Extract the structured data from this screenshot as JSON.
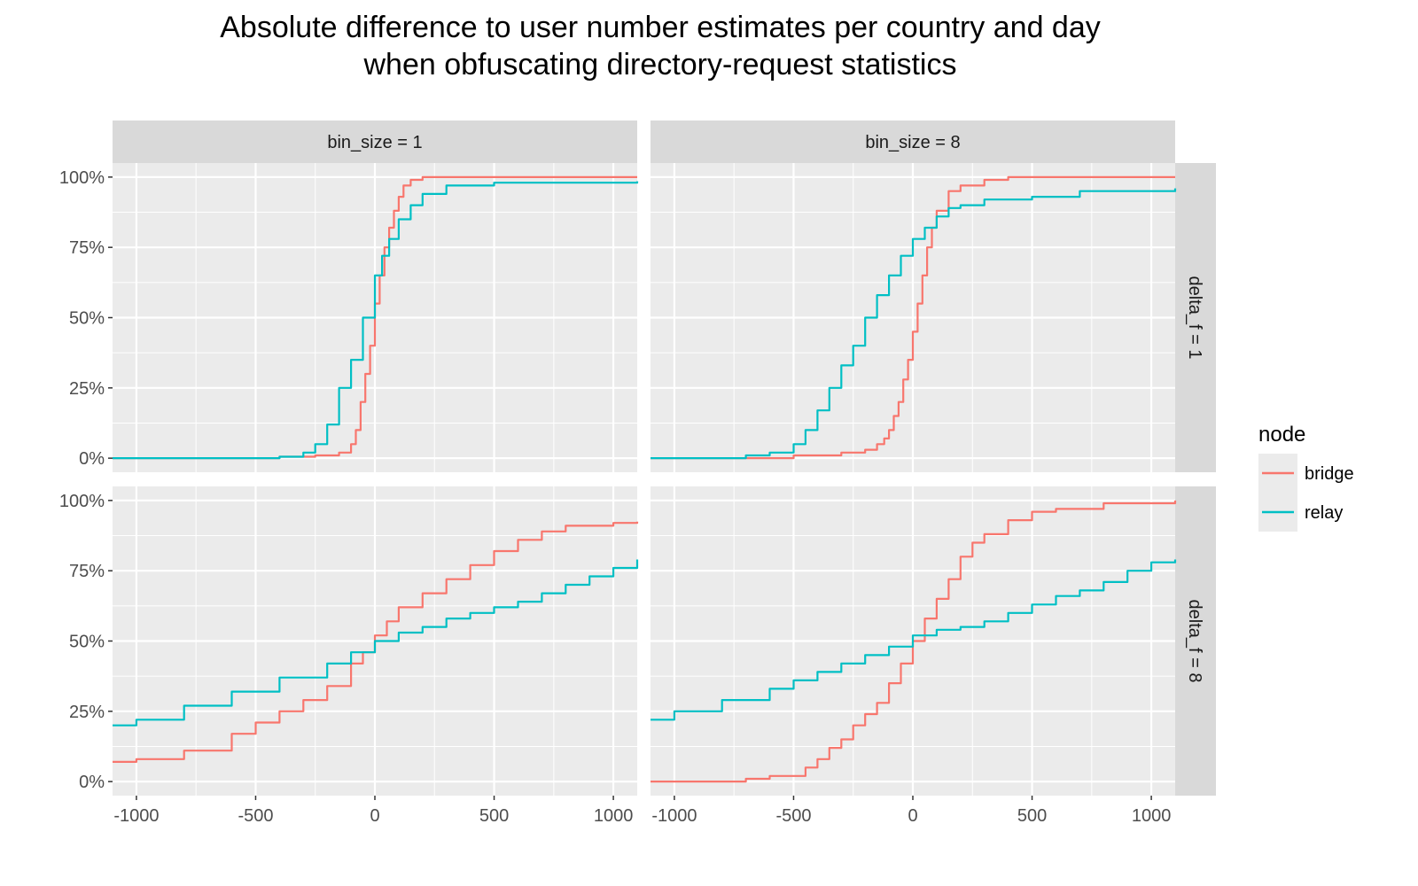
{
  "title_lines": [
    "Absolute difference to user number estimates per country and day",
    "when obfuscating directory-request statistics"
  ],
  "colors": {
    "bridge": "#F8766D",
    "relay": "#00BFC4",
    "panel": "#EBEBEB",
    "strip": "#D9D9D9",
    "grid": "#FFFFFF"
  },
  "chart_data": {
    "type": "line",
    "title": "Absolute difference to user number estimates per country and day when obfuscating directory-request statistics",
    "xlim": [
      -1100,
      1100
    ],
    "ylim": [
      0,
      1
    ],
    "x_ticks": [
      -1000,
      -500,
      0,
      500,
      1000
    ],
    "x_tick_labels": [
      "-1000",
      "-500",
      "0",
      "500",
      "1000"
    ],
    "y_ticks": [
      0,
      0.25,
      0.5,
      0.75,
      1
    ],
    "y_tick_labels": [
      "0%",
      "25%",
      "50%",
      "75%",
      "100%"
    ],
    "grid": true,
    "legend": {
      "title": "node",
      "position": "right",
      "entries": [
        "bridge",
        "relay"
      ]
    },
    "facet_cols": [
      "bin_size = 1",
      "bin_size = 8"
    ],
    "facet_rows": [
      "delta_f = 1",
      "delta_f = 8"
    ],
    "panels": [
      {
        "col": "bin_size = 1",
        "row": "delta_f = 1",
        "series": [
          {
            "name": "bridge",
            "x": [
              -1100,
              -600,
              -400,
              -250,
              -150,
              -100,
              -80,
              -60,
              -40,
              -20,
              0,
              20,
              40,
              60,
              80,
              100,
              120,
              150,
              200,
              300,
              500,
              1100
            ],
            "y": [
              0.0,
              0.0,
              0.005,
              0.01,
              0.02,
              0.05,
              0.1,
              0.2,
              0.3,
              0.4,
              0.55,
              0.65,
              0.75,
              0.82,
              0.88,
              0.93,
              0.97,
              0.99,
              1.0,
              1.0,
              1.0,
              1.0
            ]
          },
          {
            "name": "relay",
            "x": [
              -1100,
              -600,
              -400,
              -300,
              -250,
              -200,
              -150,
              -100,
              -50,
              0,
              30,
              60,
              100,
              150,
              200,
              300,
              500,
              800,
              1100
            ],
            "y": [
              0.0,
              0.0,
              0.005,
              0.02,
              0.05,
              0.12,
              0.25,
              0.35,
              0.5,
              0.65,
              0.72,
              0.78,
              0.85,
              0.9,
              0.94,
              0.97,
              0.98,
              0.98,
              0.985
            ]
          }
        ]
      },
      {
        "col": "bin_size = 8",
        "row": "delta_f = 1",
        "series": [
          {
            "name": "bridge",
            "x": [
              -1100,
              -800,
              -500,
              -300,
              -200,
              -150,
              -120,
              -100,
              -80,
              -60,
              -40,
              -20,
              0,
              20,
              40,
              60,
              80,
              100,
              150,
              200,
              300,
              400,
              600,
              1100
            ],
            "y": [
              0.0,
              0.0,
              0.01,
              0.02,
              0.03,
              0.05,
              0.07,
              0.1,
              0.15,
              0.2,
              0.28,
              0.35,
              0.45,
              0.55,
              0.65,
              0.75,
              0.82,
              0.88,
              0.95,
              0.97,
              0.99,
              1.0,
              1.0,
              1.0
            ]
          },
          {
            "name": "relay",
            "x": [
              -1100,
              -850,
              -700,
              -600,
              -500,
              -450,
              -400,
              -350,
              -300,
              -250,
              -200,
              -150,
              -100,
              -50,
              0,
              50,
              100,
              150,
              200,
              300,
              500,
              700,
              1100
            ],
            "y": [
              0.0,
              0.0,
              0.01,
              0.02,
              0.05,
              0.1,
              0.17,
              0.25,
              0.33,
              0.4,
              0.5,
              0.58,
              0.65,
              0.72,
              0.78,
              0.82,
              0.86,
              0.89,
              0.9,
              0.92,
              0.93,
              0.95,
              0.96
            ]
          }
        ]
      },
      {
        "col": "bin_size = 1",
        "row": "delta_f = 8",
        "series": [
          {
            "name": "bridge",
            "x": [
              -1100,
              -1000,
              -800,
              -600,
              -500,
              -400,
              -300,
              -200,
              -100,
              -50,
              0,
              50,
              100,
              200,
              300,
              400,
              500,
              600,
              700,
              800,
              1000,
              1100
            ],
            "y": [
              0.07,
              0.08,
              0.11,
              0.17,
              0.21,
              0.25,
              0.29,
              0.34,
              0.42,
              0.46,
              0.52,
              0.57,
              0.62,
              0.67,
              0.72,
              0.77,
              0.82,
              0.86,
              0.89,
              0.91,
              0.92,
              0.925
            ]
          },
          {
            "name": "relay",
            "x": [
              -1100,
              -1000,
              -800,
              -600,
              -400,
              -200,
              -100,
              0,
              100,
              200,
              300,
              400,
              500,
              600,
              700,
              800,
              900,
              1000,
              1100
            ],
            "y": [
              0.2,
              0.22,
              0.27,
              0.32,
              0.37,
              0.42,
              0.46,
              0.5,
              0.53,
              0.55,
              0.58,
              0.6,
              0.62,
              0.64,
              0.67,
              0.7,
              0.73,
              0.76,
              0.79
            ]
          }
        ]
      },
      {
        "col": "bin_size = 8",
        "row": "delta_f = 8",
        "series": [
          {
            "name": "bridge",
            "x": [
              -1100,
              -800,
              -700,
              -600,
              -500,
              -450,
              -400,
              -350,
              -300,
              -250,
              -200,
              -150,
              -100,
              -50,
              0,
              50,
              100,
              150,
              200,
              250,
              300,
              400,
              500,
              600,
              800,
              1100
            ],
            "y": [
              0.0,
              0.0,
              0.01,
              0.02,
              0.02,
              0.05,
              0.08,
              0.12,
              0.15,
              0.2,
              0.24,
              0.28,
              0.35,
              0.42,
              0.5,
              0.58,
              0.65,
              0.72,
              0.8,
              0.85,
              0.88,
              0.93,
              0.96,
              0.97,
              0.99,
              1.0
            ]
          },
          {
            "name": "relay",
            "x": [
              -1100,
              -1000,
              -800,
              -600,
              -500,
              -400,
              -300,
              -200,
              -100,
              0,
              100,
              200,
              300,
              400,
              500,
              600,
              700,
              800,
              900,
              1000,
              1100
            ],
            "y": [
              0.22,
              0.25,
              0.29,
              0.33,
              0.36,
              0.39,
              0.42,
              0.45,
              0.48,
              0.52,
              0.54,
              0.55,
              0.57,
              0.6,
              0.63,
              0.66,
              0.68,
              0.71,
              0.75,
              0.78,
              0.79
            ]
          }
        ]
      }
    ]
  }
}
